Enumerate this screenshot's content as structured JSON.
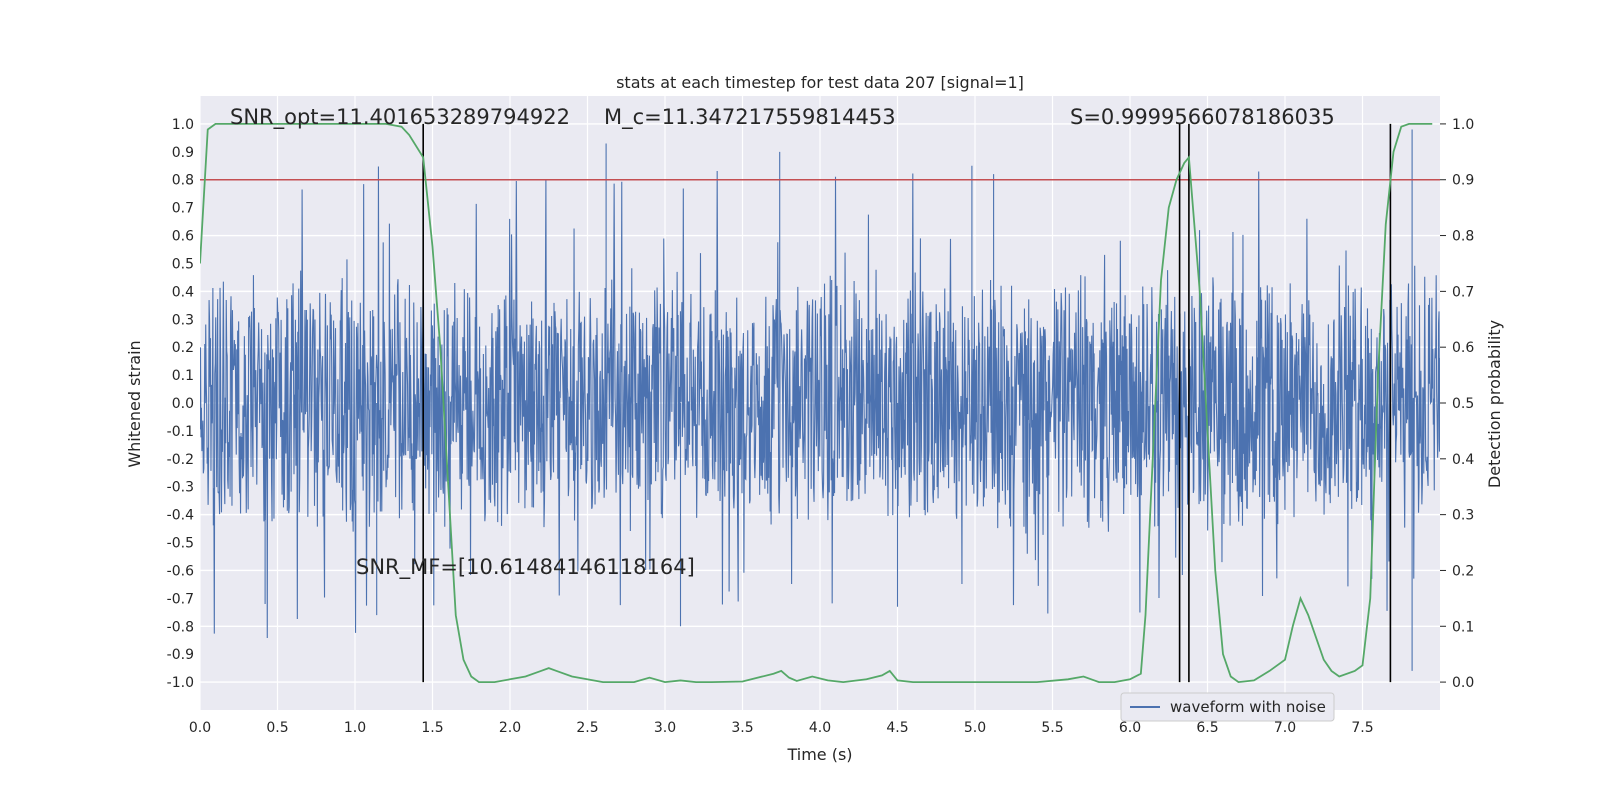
{
  "chart_data": {
    "type": "line",
    "title": "stats at each timestep for test data 207 [signal=1]",
    "xlabel": "Time (s)",
    "ylabel": "Whitened strain",
    "y2label": "Detection probability",
    "xlim": [
      0.0,
      8.0
    ],
    "ylim": [
      -1.1,
      1.1
    ],
    "y2lim": [
      -0.05,
      1.05
    ],
    "xticks": [
      "0.0",
      "0.5",
      "1.0",
      "1.5",
      "2.0",
      "2.5",
      "3.0",
      "3.5",
      "4.0",
      "4.5",
      "5.0",
      "5.5",
      "6.0",
      "6.5",
      "7.0",
      "7.5"
    ],
    "yticks": [
      "1.0",
      "0.9",
      "0.8",
      "0.7",
      "0.6",
      "0.5",
      "0.4",
      "0.3",
      "0.2",
      "0.1",
      "0.0",
      "-0.1",
      "-0.2",
      "-0.3",
      "-0.4",
      "-0.5",
      "-0.6",
      "-0.7",
      "-0.8",
      "-0.9",
      "-1.0"
    ],
    "y2ticks": [
      "1.0",
      "0.9",
      "0.8",
      "0.7",
      "0.6",
      "0.5",
      "0.4",
      "0.3",
      "0.2",
      "0.1",
      "0.0"
    ],
    "annotations": {
      "snr_opt": "SNR_opt=11.401653289794922",
      "mc": "M_c=11.347217559814453",
      "s": "S=0.9999566078186035",
      "snr_mf": "SNR_MF=[10.61484146118164]"
    },
    "threshold": {
      "value": 0.9,
      "axis": "y2",
      "color": "#c44e52"
    },
    "vlines": [
      1.44,
      6.32,
      6.38,
      7.68
    ],
    "legend": {
      "label": "waveform with noise",
      "location": "bottom-right"
    },
    "series": [
      {
        "name": "waveform with noise",
        "axis": "y",
        "color": "#4c72b0",
        "envelope": {
          "x": [
            0.0,
            0.5,
            1.0,
            1.5,
            2.0,
            2.5,
            3.0,
            3.5,
            4.0,
            4.5,
            5.0,
            5.5,
            6.0,
            6.5,
            7.0,
            7.5,
            8.0
          ],
          "core": 0.4,
          "spikes_max": 0.93,
          "spikes_min": -0.96
        }
      },
      {
        "name": "detection probability",
        "axis": "y2",
        "color": "#55a868",
        "x": [
          0.0,
          0.05,
          0.1,
          0.2,
          0.3,
          0.5,
          0.8,
          1.0,
          1.2,
          1.3,
          1.35,
          1.44,
          1.5,
          1.55,
          1.6,
          1.65,
          1.7,
          1.75,
          1.8,
          1.9,
          2.0,
          2.1,
          2.2,
          2.25,
          2.3,
          2.4,
          2.6,
          2.8,
          2.9,
          3.0,
          3.1,
          3.2,
          3.3,
          3.5,
          3.7,
          3.75,
          3.8,
          3.85,
          3.95,
          4.05,
          4.15,
          4.3,
          4.4,
          4.45,
          4.5,
          4.6,
          4.8,
          5.0,
          5.2,
          5.4,
          5.6,
          5.7,
          5.75,
          5.8,
          5.9,
          6.0,
          6.07,
          6.1,
          6.15,
          6.2,
          6.25,
          6.3,
          6.35,
          6.38,
          6.45,
          6.5,
          6.55,
          6.6,
          6.65,
          6.7,
          6.8,
          6.9,
          7.0,
          7.05,
          7.1,
          7.15,
          7.2,
          7.25,
          7.3,
          7.35,
          7.45,
          7.5,
          7.55,
          7.6,
          7.65,
          7.7,
          7.75,
          7.8,
          7.9,
          7.95
        ],
        "y": [
          0.75,
          0.99,
          1.0,
          1.0,
          1.0,
          1.0,
          1.0,
          1.0,
          1.0,
          0.995,
          0.98,
          0.94,
          0.78,
          0.6,
          0.36,
          0.12,
          0.04,
          0.01,
          0.0,
          0.0,
          0.005,
          0.01,
          0.02,
          0.025,
          0.02,
          0.01,
          0.0,
          0.0,
          0.008,
          0.0,
          0.003,
          0.0,
          0.0,
          0.001,
          0.015,
          0.02,
          0.008,
          0.002,
          0.01,
          0.003,
          0.0,
          0.005,
          0.012,
          0.02,
          0.003,
          0.0,
          0.0,
          0.0,
          0.0,
          0.0,
          0.005,
          0.01,
          0.005,
          0.0,
          0.0,
          0.005,
          0.015,
          0.12,
          0.42,
          0.72,
          0.85,
          0.9,
          0.93,
          0.94,
          0.7,
          0.45,
          0.2,
          0.05,
          0.01,
          0.0,
          0.003,
          0.02,
          0.04,
          0.1,
          0.15,
          0.12,
          0.08,
          0.04,
          0.02,
          0.01,
          0.02,
          0.03,
          0.15,
          0.55,
          0.82,
          0.95,
          0.995,
          1.0,
          1.0,
          1.0
        ]
      }
    ]
  }
}
